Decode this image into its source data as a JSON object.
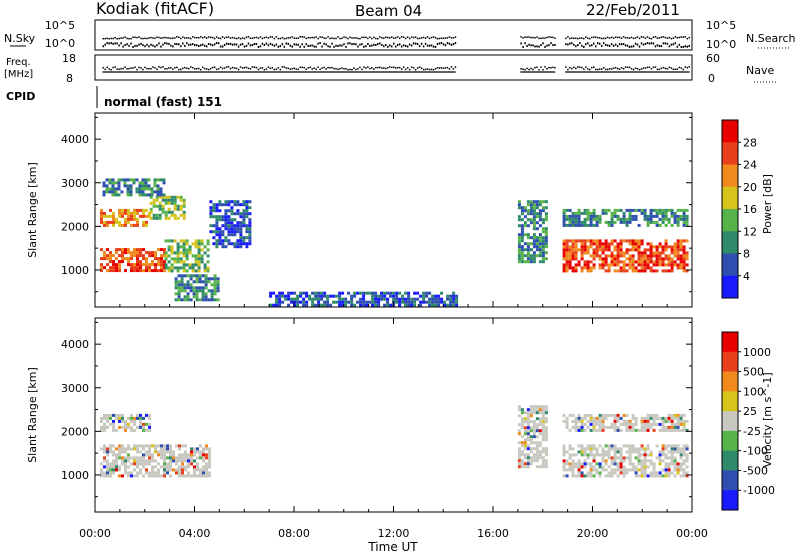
{
  "header": {
    "station": "Kodiak (fitACF)",
    "beam": "Beam 04",
    "date": "22/Feb/2011"
  },
  "status_panels": {
    "nsky_label": "N.Sky",
    "nsearch_label": "N.Search",
    "nsky_ticks": [
      "10^5",
      "10^0"
    ],
    "nsearch_ticks": [
      "10^5",
      "10^0"
    ],
    "freq_label_line1": "Freq.",
    "freq_label_line2": "[MHz]",
    "freq_ticks": [
      "18",
      "8"
    ],
    "nave_label": "Nave",
    "nave_ticks": [
      "60",
      "0"
    ],
    "cpid_label": "CPID",
    "cpid_value": "normal (fast) 151"
  },
  "chart_data": [
    {
      "type": "heatmap",
      "title": "",
      "xlabel": "",
      "ylabel": "Slant Range [km]",
      "x_unit": "hours UT",
      "xlim": [
        0,
        24
      ],
      "ylim": [
        150,
        4600
      ],
      "yticks": [
        1000,
        2000,
        3000,
        4000
      ],
      "colorbar": {
        "label": "Power [dB]",
        "tick_labels": [
          "4",
          "8",
          "12",
          "16",
          "20",
          "24",
          "28"
        ],
        "range": [
          0,
          30
        ],
        "colors": [
          "#1a1aff",
          "#2e4fb0",
          "#2f8a6a",
          "#58b24a",
          "#d6c41d",
          "#f08a1e",
          "#e8401a",
          "#e80000"
        ]
      },
      "regions": [
        {
          "t0": 0.2,
          "t1": 2.8,
          "r0": 1000,
          "r1": 1500,
          "value": 26
        },
        {
          "t0": 2.8,
          "t1": 4.6,
          "r0": 1000,
          "r1": 1700,
          "value": 14
        },
        {
          "t0": 0.2,
          "t1": 2.2,
          "r0": 2000,
          "r1": 2400,
          "value": 20
        },
        {
          "t0": 2.2,
          "t1": 3.6,
          "r0": 2200,
          "r1": 2700,
          "value": 12
        },
        {
          "t0": 0.3,
          "t1": 2.8,
          "r0": 2700,
          "r1": 3100,
          "value": 8
        },
        {
          "t0": 4.6,
          "t1": 6.2,
          "r0": 1500,
          "r1": 2600,
          "value": 6
        },
        {
          "t0": 3.2,
          "t1": 5.0,
          "r0": 300,
          "r1": 900,
          "value": 8
        },
        {
          "t0": 7.0,
          "t1": 14.5,
          "r0": 200,
          "r1": 500,
          "value": 6
        },
        {
          "t0": 17.0,
          "t1": 18.2,
          "r0": 1200,
          "r1": 2600,
          "value": 10
        },
        {
          "t0": 18.8,
          "t1": 23.8,
          "r0": 1000,
          "r1": 1700,
          "value": 26
        },
        {
          "t0": 18.8,
          "t1": 23.8,
          "r0": 2000,
          "r1": 2400,
          "value": 10
        }
      ]
    },
    {
      "type": "heatmap",
      "title": "",
      "xlabel": "Time UT",
      "ylabel": "Slant Range [km]",
      "x_unit": "hours UT",
      "xlim": [
        0,
        24
      ],
      "ylim": [
        150,
        4600
      ],
      "yticks": [
        1000,
        2000,
        3000,
        4000
      ],
      "xtick_labels": [
        "00:00",
        "04:00",
        "08:00",
        "12:00",
        "16:00",
        "20:00",
        "00:00"
      ],
      "colorbar": {
        "label": "Velocity [m s^-1]",
        "tick_labels": [
          "1000",
          "500",
          "100",
          "25",
          "-25",
          "-100",
          "-500",
          "-1000"
        ],
        "colors": [
          "#1a1aff",
          "#2e4fb0",
          "#2f8a6a",
          "#58b24a",
          "#c8c8c0",
          "#d6c41d",
          "#f08a1e",
          "#e8401a",
          "#e80000"
        ]
      },
      "regions": [
        {
          "t0": 0.2,
          "t1": 4.6,
          "r0": 1000,
          "r1": 1700,
          "value": 0
        },
        {
          "t0": 0.2,
          "t1": 2.2,
          "r0": 2000,
          "r1": 2400,
          "value": 0
        },
        {
          "t0": 17.0,
          "t1": 18.2,
          "r0": 1200,
          "r1": 2600,
          "value": 0
        },
        {
          "t0": 18.8,
          "t1": 23.8,
          "r0": 1000,
          "r1": 1700,
          "value": 0
        },
        {
          "t0": 18.8,
          "t1": 23.8,
          "r0": 2000,
          "r1": 2400,
          "value": 0
        }
      ]
    }
  ]
}
